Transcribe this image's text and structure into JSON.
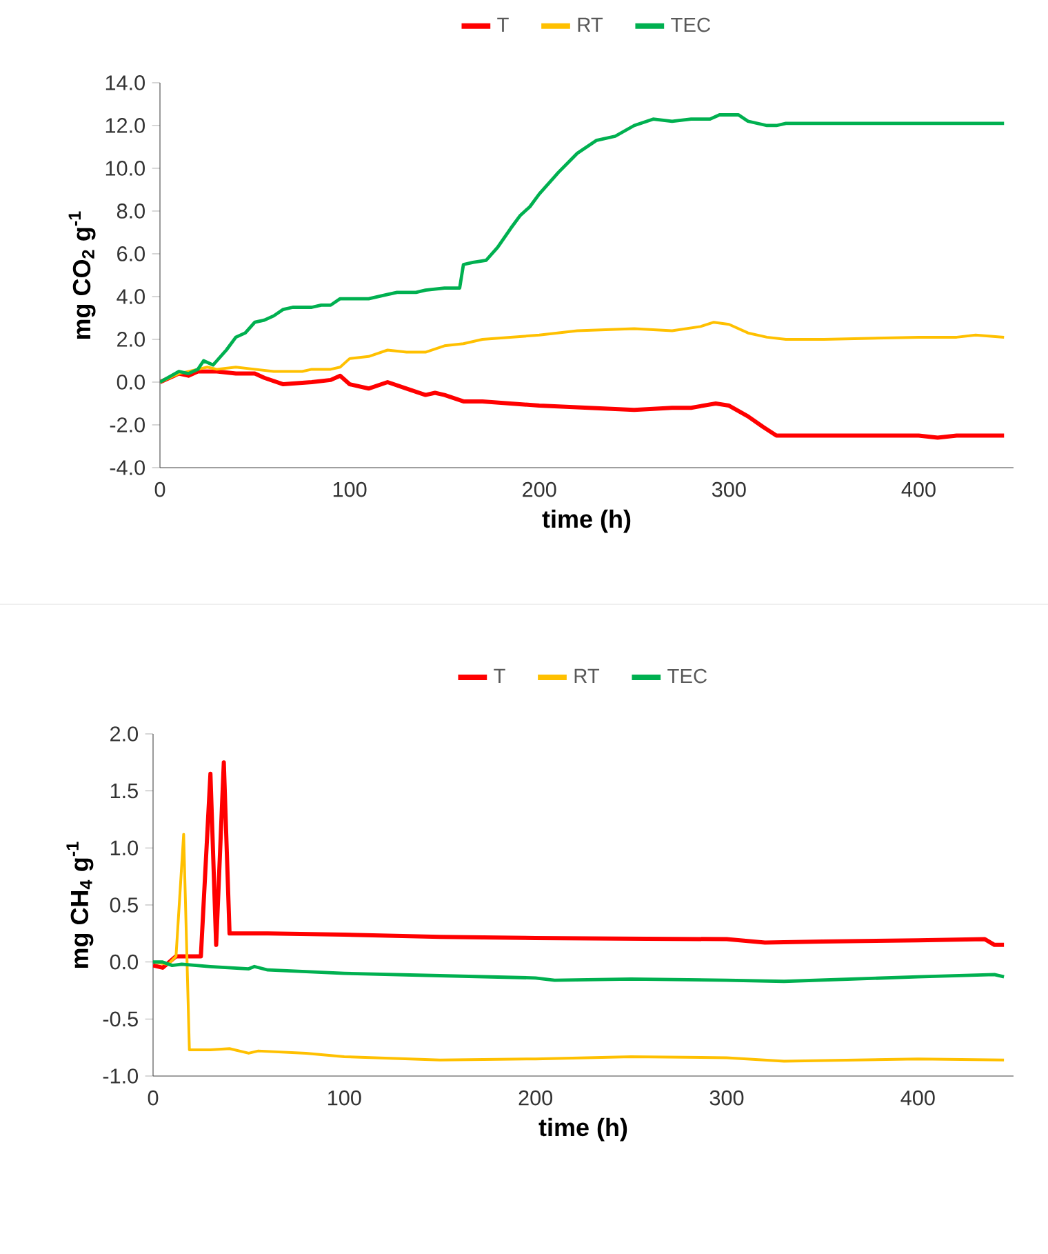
{
  "chart_data": [
    {
      "type": "line",
      "xlabel": "time (h)",
      "ylabel": "mg CO$_{2}$ g$^{-1}$",
      "legend": "top",
      "grid": false,
      "marker": "none",
      "line_style": "solid",
      "xlim": [
        0,
        450
      ],
      "xticks": [
        0,
        100,
        200,
        300,
        400
      ],
      "ylim": [
        -4,
        14
      ],
      "yticks": [
        {
          "value": -4,
          "label": "-4.0"
        },
        {
          "value": -2,
          "label": "-2.0"
        },
        {
          "value": 0,
          "label": "0.0"
        },
        {
          "value": 2,
          "label": "2.0"
        },
        {
          "value": 4,
          "label": "4.0"
        },
        {
          "value": 6,
          "label": "6.0"
        },
        {
          "value": 8,
          "label": "8.0"
        },
        {
          "value": 10,
          "label": "10.0"
        },
        {
          "value": 12,
          "label": "12.0"
        },
        {
          "value": 14,
          "label": "14.0"
        }
      ],
      "series": [
        {
          "name": "T",
          "color": "#ff0000",
          "x": [
            0,
            10,
            15,
            20,
            30,
            40,
            50,
            55,
            65,
            80,
            90,
            95,
            100,
            110,
            120,
            130,
            140,
            145,
            150,
            160,
            170,
            200,
            250,
            270,
            280,
            293,
            300,
            310,
            318,
            325,
            400,
            410,
            420,
            445
          ],
          "values": [
            0,
            0.4,
            0.3,
            0.5,
            0.5,
            0.4,
            0.4,
            0.2,
            -0.1,
            0.0,
            0.1,
            0.3,
            -0.1,
            -0.3,
            0.0,
            -0.3,
            -0.6,
            -0.5,
            -0.6,
            -0.9,
            -0.9,
            -1.1,
            -1.3,
            -1.2,
            -1.2,
            -1.0,
            -1.1,
            -1.6,
            -2.1,
            -2.5,
            -2.5,
            -2.6,
            -2.5,
            -2.5
          ]
        },
        {
          "name": "RT",
          "color": "#ffc000",
          "x": [
            0,
            10,
            20,
            25,
            30,
            40,
            50,
            60,
            75,
            80,
            90,
            95,
            100,
            110,
            120,
            130,
            140,
            150,
            160,
            170,
            200,
            220,
            250,
            270,
            285,
            292,
            300,
            310,
            320,
            330,
            350,
            400,
            420,
            430,
            445
          ],
          "values": [
            0,
            0.4,
            0.6,
            0.7,
            0.6,
            0.7,
            0.6,
            0.5,
            0.5,
            0.6,
            0.6,
            0.7,
            1.1,
            1.2,
            1.5,
            1.4,
            1.4,
            1.7,
            1.8,
            2.0,
            2.2,
            2.4,
            2.5,
            2.4,
            2.6,
            2.8,
            2.7,
            2.3,
            2.1,
            2.0,
            2.0,
            2.1,
            2.1,
            2.2,
            2.1
          ]
        },
        {
          "name": "TEC",
          "color": "#00b050",
          "x": [
            0,
            10,
            15,
            20,
            23,
            28,
            30,
            35,
            40,
            45,
            50,
            55,
            60,
            65,
            70,
            80,
            85,
            90,
            95,
            110,
            120,
            125,
            135,
            140,
            150,
            158,
            160,
            165,
            172,
            178,
            185,
            190,
            195,
            200,
            210,
            220,
            230,
            240,
            250,
            260,
            270,
            280,
            290,
            295,
            305,
            310,
            320,
            325,
            330,
            445
          ],
          "values": [
            0,
            0.5,
            0.4,
            0.6,
            1.0,
            0.8,
            1.0,
            1.5,
            2.1,
            2.3,
            2.8,
            2.9,
            3.1,
            3.4,
            3.5,
            3.5,
            3.6,
            3.6,
            3.9,
            3.9,
            4.1,
            4.2,
            4.2,
            4.3,
            4.4,
            4.4,
            5.5,
            5.6,
            5.7,
            6.3,
            7.2,
            7.8,
            8.2,
            8.8,
            9.8,
            10.7,
            11.3,
            11.5,
            12.0,
            12.3,
            12.2,
            12.3,
            12.3,
            12.5,
            12.5,
            12.2,
            12.0,
            12.0,
            12.1,
            12.1
          ]
        }
      ]
    },
    {
      "type": "line",
      "xlabel": "time (h)",
      "ylabel": "mg CH$_{4}$ g$^{-1}$",
      "legend": "top",
      "grid": false,
      "marker": "none",
      "line_style": "solid",
      "xlim": [
        0,
        450
      ],
      "xticks": [
        0,
        100,
        200,
        300,
        400
      ],
      "ylim": [
        -1,
        2
      ],
      "yticks": [
        {
          "value": -1,
          "label": "-1.0"
        },
        {
          "value": -0.5,
          "label": "-0.5"
        },
        {
          "value": 0,
          "label": "0.0"
        },
        {
          "value": 0.5,
          "label": "0.5"
        },
        {
          "value": 1,
          "label": "1.0"
        },
        {
          "value": 1.5,
          "label": "1.5"
        },
        {
          "value": 2,
          "label": "2.0"
        }
      ],
      "series": [
        {
          "name": "T",
          "color": "#ff0000",
          "x": [
            0,
            5,
            12,
            15,
            25,
            30,
            33,
            37,
            40,
            60,
            100,
            150,
            200,
            300,
            320,
            350,
            400,
            435,
            440,
            445
          ],
          "values": [
            -0.03,
            -0.05,
            0.05,
            0.05,
            0.05,
            1.65,
            0.15,
            1.75,
            0.25,
            0.25,
            0.24,
            0.22,
            0.21,
            0.2,
            0.17,
            0.18,
            0.19,
            0.2,
            0.15,
            0.15
          ]
        },
        {
          "name": "RT",
          "color": "#ffc000",
          "x": [
            0,
            8,
            12,
            16,
            19,
            30,
            40,
            50,
            55,
            80,
            100,
            150,
            200,
            250,
            300,
            330,
            400,
            445
          ],
          "values": [
            0,
            -0.02,
            0.05,
            1.12,
            -0.77,
            -0.77,
            -0.76,
            -0.8,
            -0.78,
            -0.8,
            -0.83,
            -0.86,
            -0.85,
            -0.83,
            -0.84,
            -0.87,
            -0.85,
            -0.86
          ]
        },
        {
          "name": "TEC",
          "color": "#00b050",
          "x": [
            0,
            5,
            10,
            15,
            30,
            50,
            53,
            60,
            100,
            150,
            200,
            210,
            250,
            300,
            330,
            400,
            440,
            445
          ],
          "values": [
            0,
            0.0,
            -0.03,
            -0.02,
            -0.04,
            -0.06,
            -0.04,
            -0.07,
            -0.1,
            -0.12,
            -0.14,
            -0.16,
            -0.15,
            -0.16,
            -0.17,
            -0.13,
            -0.11,
            -0.13
          ]
        }
      ]
    }
  ]
}
